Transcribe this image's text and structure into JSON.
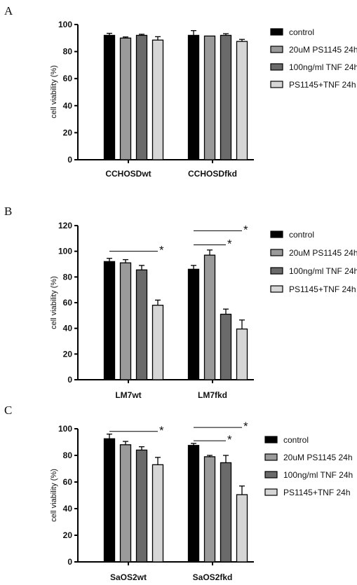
{
  "chart_data": [
    {
      "panel": "A",
      "type": "bar",
      "ylabel": "cell viability (%)",
      "ylim": [
        0,
        100
      ],
      "yticks": [
        0,
        20,
        40,
        60,
        80,
        100
      ],
      "categories": [
        "CCHOSDwt",
        "CCHOSDfkd"
      ],
      "series": [
        {
          "name": "control",
          "color": "#000000",
          "values": [
            92,
            92
          ],
          "errors": [
            1.5,
            3.5
          ]
        },
        {
          "name": "20uM PS1145 24h",
          "color": "#9a9a9a",
          "values": [
            90,
            91.5
          ],
          "errors": [
            0.8,
            0
          ]
        },
        {
          "name": "100ng/ml TNF 24h",
          "color": "#6a6a6a",
          "values": [
            92,
            92
          ],
          "errors": [
            0.8,
            1.2
          ]
        },
        {
          "name": "PS1145+TNF 24h",
          "color": "#d6d6d6",
          "values": [
            88.5,
            87.5
          ],
          "errors": [
            2.5,
            1.5
          ]
        }
      ],
      "significance": [],
      "legend_position": "right"
    },
    {
      "panel": "B",
      "type": "bar",
      "ylabel": "cell viability (%)",
      "ylim": [
        0,
        120
      ],
      "yticks": [
        0,
        20,
        40,
        60,
        80,
        100,
        120
      ],
      "categories": [
        "LM7wt",
        "LM7fkd"
      ],
      "series": [
        {
          "name": "control",
          "color": "#000000",
          "values": [
            92,
            86
          ],
          "errors": [
            2.5,
            3
          ]
        },
        {
          "name": "20uM PS1145 24h",
          "color": "#9a9a9a",
          "values": [
            91,
            97
          ],
          "errors": [
            2.5,
            4
          ]
        },
        {
          "name": "100ng/ml TNF 24h",
          "color": "#6a6a6a",
          "values": [
            85.5,
            51
          ],
          "errors": [
            3.5,
            4
          ]
        },
        {
          "name": "PS1145+TNF 24h",
          "color": "#d6d6d6",
          "values": [
            58,
            39.5
          ],
          "errors": [
            4,
            7
          ]
        }
      ],
      "significance": [
        {
          "label": "*",
          "from_cat": 0,
          "from_series": 0,
          "to_cat": 0,
          "to_series": 3,
          "y": 100
        },
        {
          "label": "*",
          "from_cat": 1,
          "from_series": 0,
          "to_cat": 1,
          "to_series": 2,
          "y": 105
        },
        {
          "label": "*",
          "from_cat": 1,
          "from_series": 0,
          "to_cat": 1,
          "to_series": 3,
          "y": 116
        }
      ],
      "legend_position": "right"
    },
    {
      "panel": "C",
      "type": "bar",
      "ylabel": "cell viability (%)",
      "ylim": [
        0,
        100
      ],
      "yticks": [
        0,
        20,
        40,
        60,
        80,
        100
      ],
      "categories": [
        "SaOS2wt",
        "SaOS2fkd"
      ],
      "series": [
        {
          "name": "control",
          "color": "#000000",
          "values": [
            92.5,
            87.5
          ],
          "errors": [
            3.5,
            1.5
          ]
        },
        {
          "name": "20uM PS1145 24h",
          "color": "#9a9a9a",
          "values": [
            88,
            79
          ],
          "errors": [
            2.5,
            1
          ]
        },
        {
          "name": "100ng/ml TNF 24h",
          "color": "#6a6a6a",
          "values": [
            84,
            74.5
          ],
          "errors": [
            2.5,
            5.5
          ]
        },
        {
          "name": "PS1145+TNF 24h",
          "color": "#d6d6d6",
          "values": [
            73,
            50.5
          ],
          "errors": [
            5.5,
            6.5
          ]
        }
      ],
      "significance": [
        {
          "label": "*",
          "from_cat": 0,
          "from_series": 0,
          "to_cat": 0,
          "to_series": 3,
          "y": 98
        },
        {
          "label": "*",
          "from_cat": 1,
          "from_series": 0,
          "to_cat": 1,
          "to_series": 2,
          "y": 91
        },
        {
          "label": "*",
          "from_cat": 1,
          "from_series": 0,
          "to_cat": 1,
          "to_series": 3,
          "y": 101
        }
      ],
      "legend_position": "right"
    }
  ]
}
